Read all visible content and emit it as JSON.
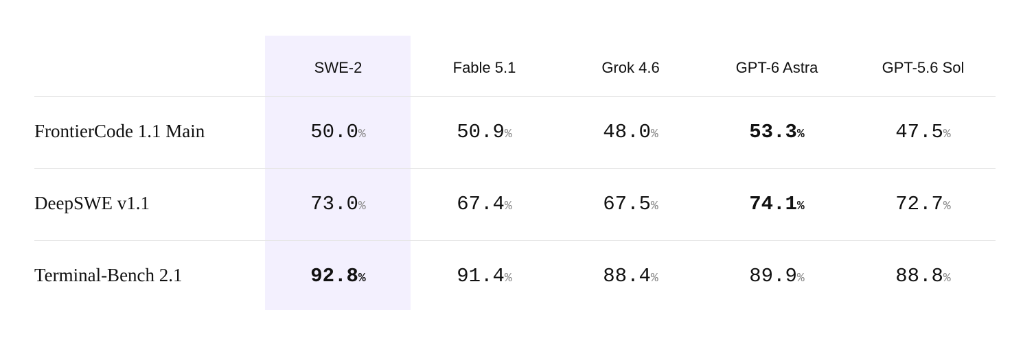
{
  "table": {
    "unit": "%",
    "highlight_column": 0,
    "columns": [
      "SWE-2",
      "Fable 5.1",
      "Grok 4.6",
      "GPT-6 Astra",
      "GPT-5.6 Sol"
    ],
    "rows": [
      {
        "label": "FrontierCode 1.1 Main",
        "cells": [
          "50.0",
          "50.9",
          "48.0",
          "53.3",
          "47.5"
        ],
        "best": 3
      },
      {
        "label": "DeepSWE v1.1",
        "cells": [
          "73.0",
          "67.4",
          "67.5",
          "74.1",
          "72.7"
        ],
        "best": 3
      },
      {
        "label": "Terminal-Bench 2.1",
        "cells": [
          "92.8",
          "91.4",
          "88.4",
          "89.9",
          "88.8"
        ],
        "best": 0
      }
    ]
  }
}
